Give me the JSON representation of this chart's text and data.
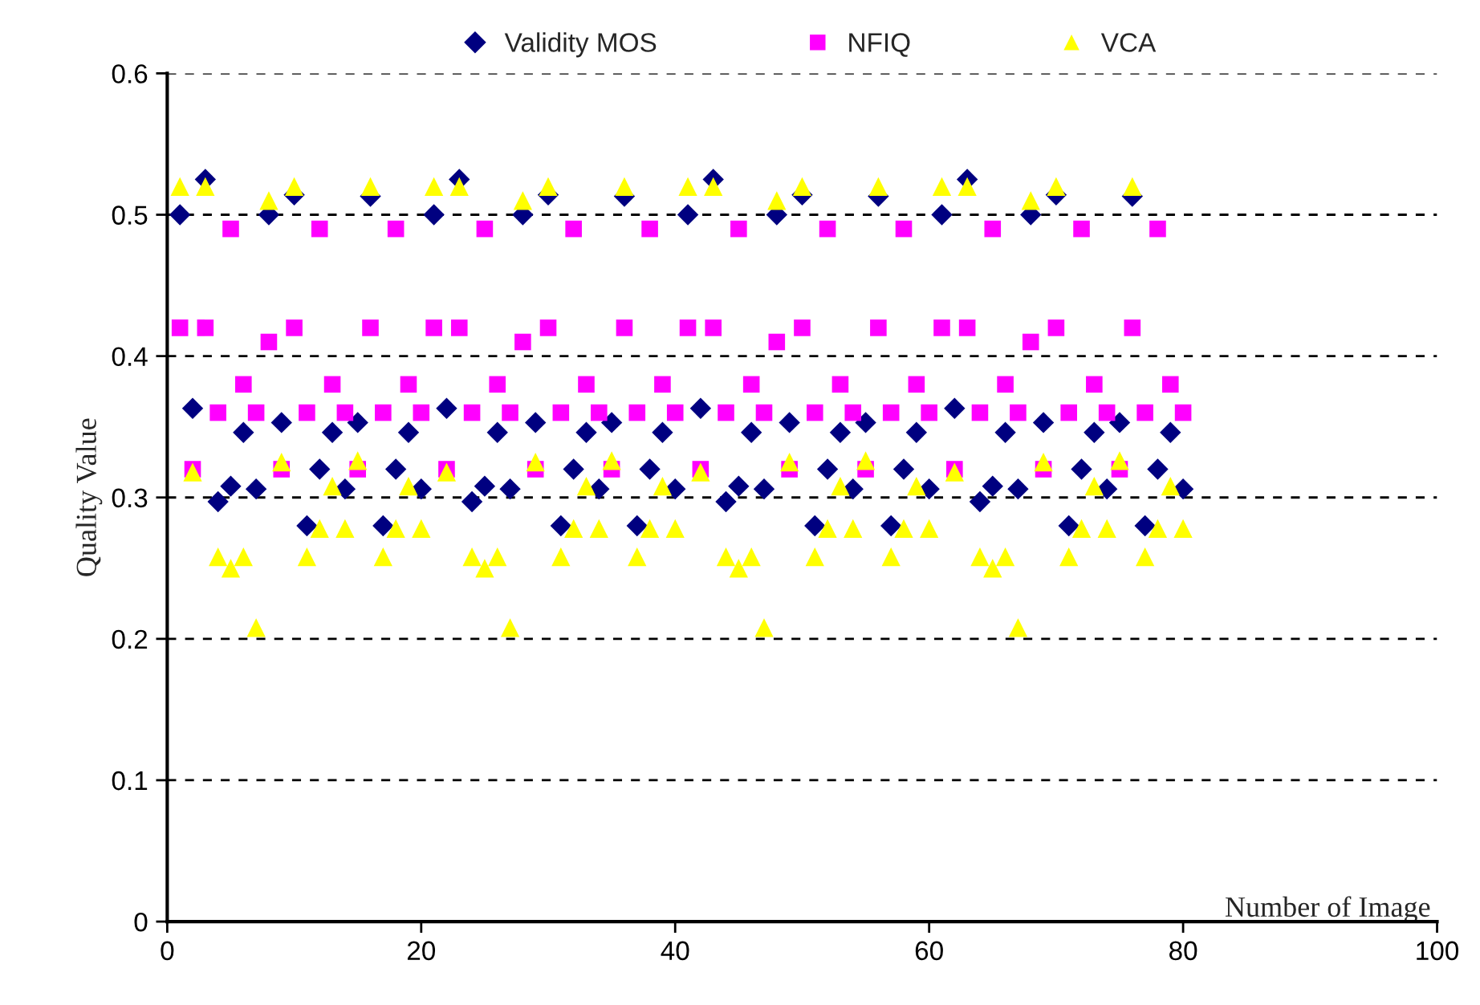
{
  "chart_data": {
    "type": "scatter",
    "xlabel": "Number of Image",
    "ylabel": "Quality Value",
    "x": [
      1,
      2,
      3,
      4,
      5,
      6,
      7,
      8,
      9,
      10,
      11,
      12,
      13,
      14,
      15,
      16,
      17,
      18,
      19,
      20,
      21,
      22,
      23,
      24,
      25,
      26,
      27,
      28,
      29,
      30,
      31,
      32,
      33,
      34,
      35,
      36,
      37,
      38,
      39,
      40,
      41,
      42,
      43,
      44,
      45,
      46,
      47,
      48,
      49,
      50,
      51,
      52,
      53,
      54,
      55,
      56,
      57,
      58,
      59,
      60,
      61,
      62,
      63,
      64,
      65,
      66,
      67,
      68,
      69,
      70,
      71,
      72,
      73,
      74,
      75,
      76,
      77,
      78,
      79,
      80
    ],
    "series": [
      {
        "name": "Validity MOS",
        "color": "#000080",
        "marker": "diamond",
        "values": [
          0.5,
          0.363,
          0.525,
          0.297,
          0.308,
          0.346,
          0.306,
          0.5,
          0.353,
          0.514,
          0.28,
          0.32,
          0.346,
          0.306,
          0.353,
          0.513,
          0.28,
          0.32,
          0.346,
          0.306,
          0.5,
          0.363,
          0.525,
          0.297,
          0.308,
          0.346,
          0.306,
          0.5,
          0.353,
          0.514,
          0.28,
          0.32,
          0.346,
          0.306,
          0.353,
          0.513,
          0.28,
          0.32,
          0.346,
          0.306,
          0.5,
          0.363,
          0.525,
          0.297,
          0.308,
          0.346,
          0.306,
          0.5,
          0.353,
          0.514,
          0.28,
          0.32,
          0.346,
          0.306,
          0.353,
          0.513,
          0.28,
          0.32,
          0.346,
          0.306,
          0.5,
          0.363,
          0.525,
          0.297,
          0.308,
          0.346,
          0.306,
          0.5,
          0.353,
          0.514,
          0.28,
          0.32,
          0.346,
          0.306,
          0.353,
          0.513,
          0.28,
          0.32,
          0.346,
          0.306
        ]
      },
      {
        "name": "NFIQ",
        "color": "#ff00ff",
        "marker": "square",
        "values": [
          0.42,
          0.32,
          0.42,
          0.36,
          0.49,
          0.38,
          0.36,
          0.41,
          0.32,
          0.42,
          0.36,
          0.49,
          0.38,
          0.36,
          0.32,
          0.42,
          0.36,
          0.49,
          0.38,
          0.36,
          0.42,
          0.32,
          0.42,
          0.36,
          0.49,
          0.38,
          0.36,
          0.41,
          0.32,
          0.42,
          0.36,
          0.49,
          0.38,
          0.36,
          0.32,
          0.42,
          0.36,
          0.49,
          0.38,
          0.36,
          0.42,
          0.32,
          0.42,
          0.36,
          0.49,
          0.38,
          0.36,
          0.41,
          0.32,
          0.42,
          0.36,
          0.49,
          0.38,
          0.36,
          0.32,
          0.42,
          0.36,
          0.49,
          0.38,
          0.36,
          0.42,
          0.32,
          0.42,
          0.36,
          0.49,
          0.38,
          0.36,
          0.41,
          0.32,
          0.42,
          0.36,
          0.49,
          0.38,
          0.36,
          0.32,
          0.42,
          0.36,
          0.49,
          0.38,
          0.36
        ]
      },
      {
        "name": "VCA",
        "color": "#ffff00",
        "marker": "triangle",
        "values": [
          0.52,
          0.318,
          0.52,
          0.258,
          0.25,
          0.258,
          0.208,
          0.51,
          0.325,
          0.52,
          0.258,
          0.278,
          0.308,
          0.278,
          0.326,
          0.52,
          0.258,
          0.278,
          0.308,
          0.278,
          0.52,
          0.318,
          0.52,
          0.258,
          0.25,
          0.258,
          0.208,
          0.51,
          0.325,
          0.52,
          0.258,
          0.278,
          0.308,
          0.278,
          0.326,
          0.52,
          0.258,
          0.278,
          0.308,
          0.278,
          0.52,
          0.318,
          0.52,
          0.258,
          0.25,
          0.258,
          0.208,
          0.51,
          0.325,
          0.52,
          0.258,
          0.278,
          0.308,
          0.278,
          0.326,
          0.52,
          0.258,
          0.278,
          0.308,
          0.278,
          0.52,
          0.318,
          0.52,
          0.258,
          0.25,
          0.258,
          0.208,
          0.51,
          0.325,
          0.52,
          0.258,
          0.278,
          0.308,
          0.278,
          0.326,
          0.52,
          0.258,
          0.278,
          0.308,
          0.278
        ]
      }
    ],
    "xlim": [
      0,
      100
    ],
    "xticks": [
      0,
      20,
      40,
      60,
      80,
      100
    ],
    "ylim": [
      0,
      0.6
    ],
    "yticks": [
      0,
      0.1,
      0.2,
      0.3,
      0.4,
      0.5,
      0.6
    ],
    "grid": "y",
    "legend": "top"
  }
}
